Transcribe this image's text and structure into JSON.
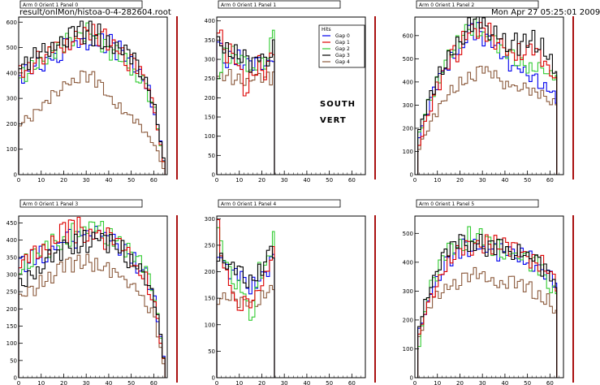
{
  "header": {
    "file_path": "result/onlMon/histoa-0-4-282604.root",
    "timestamp": "Mon Apr 27 05:25:01 2009"
  },
  "overlay_text": {
    "line1": "SOUTH",
    "line2": "VERT"
  },
  "legend": {
    "title": "Hits",
    "entries": [
      "Gap 0",
      "Gap 1",
      "Gap 2",
      "Gap 3",
      "Gap 4"
    ]
  },
  "colors": {
    "Gap 0": "#0000ee",
    "Gap 1": "#dd0000",
    "Gap 2": "#33cc33",
    "Gap 3": "#000000",
    "Gap 4": "#8b5a3c",
    "frame_right": "#aa1111"
  },
  "chart_data": [
    {
      "type": "line",
      "title": "Arm 0 Orient 1 Panel 0",
      "xlim": [
        0,
        66
      ],
      "ylim": [
        0,
        620
      ],
      "xticks": [
        0,
        10,
        20,
        30,
        40,
        50,
        60
      ],
      "yticks": [
        0,
        100,
        200,
        300,
        400,
        500,
        600
      ],
      "series": [
        {
          "name": "Gap 0",
          "x": [
            0,
            5,
            10,
            15,
            20,
            25,
            30,
            35,
            40,
            45,
            50,
            55,
            60,
            63,
            65
          ],
          "y": [
            390,
            410,
            440,
            470,
            500,
            520,
            540,
            530,
            510,
            480,
            440,
            380,
            250,
            90,
            0
          ]
        },
        {
          "name": "Gap 1",
          "x": [
            0,
            5,
            10,
            15,
            20,
            25,
            30,
            35,
            40,
            45,
            50,
            55,
            60,
            63,
            65
          ],
          "y": [
            400,
            430,
            460,
            490,
            520,
            540,
            560,
            540,
            520,
            480,
            430,
            370,
            240,
            80,
            0
          ]
        },
        {
          "name": "Gap 2",
          "x": [
            0,
            5,
            10,
            15,
            20,
            25,
            30,
            35,
            40,
            45,
            50,
            55,
            60,
            63,
            65
          ],
          "y": [
            380,
            420,
            450,
            480,
            510,
            540,
            580,
            520,
            490,
            460,
            420,
            360,
            240,
            80,
            0
          ]
        },
        {
          "name": "Gap 3",
          "x": [
            0,
            5,
            10,
            15,
            20,
            25,
            30,
            35,
            40,
            45,
            50,
            55,
            60,
            63,
            65
          ],
          "y": [
            420,
            450,
            490,
            520,
            540,
            550,
            560,
            550,
            530,
            490,
            450,
            390,
            260,
            100,
            0
          ]
        },
        {
          "name": "Gap 4",
          "x": [
            0,
            5,
            10,
            15,
            20,
            25,
            30,
            35,
            40,
            45,
            50,
            55,
            60,
            63,
            65
          ],
          "y": [
            210,
            230,
            270,
            310,
            360,
            380,
            400,
            350,
            300,
            260,
            220,
            170,
            120,
            40,
            0
          ]
        }
      ]
    },
    {
      "type": "line",
      "title": "Arm 0 Orient 1 Panel 1",
      "xlim": [
        0,
        66
      ],
      "ylim": [
        0,
        410
      ],
      "xticks": [
        0,
        10,
        20,
        30,
        40,
        50,
        60
      ],
      "yticks": [
        0,
        50,
        100,
        150,
        200,
        250,
        300,
        350,
        400
      ],
      "series": [
        {
          "name": "Gap 0",
          "x": [
            0,
            3,
            6,
            9,
            12,
            15,
            18,
            21,
            24,
            25.5,
            25.6
          ],
          "y": [
            330,
            300,
            310,
            300,
            290,
            270,
            290,
            280,
            300,
            310,
            0
          ]
        },
        {
          "name": "Gap 1",
          "x": [
            0,
            3,
            6,
            9,
            12,
            15,
            18,
            21,
            24,
            25.5,
            25.6
          ],
          "y": [
            380,
            300,
            320,
            290,
            210,
            260,
            290,
            250,
            330,
            350,
            0
          ]
        },
        {
          "name": "Gap 2",
          "x": [
            0,
            3,
            6,
            9,
            12,
            15,
            18,
            21,
            24,
            25.5,
            25.6
          ],
          "y": [
            260,
            320,
            310,
            300,
            280,
            270,
            300,
            290,
            340,
            380,
            0
          ]
        },
        {
          "name": "Gap 3",
          "x": [
            0,
            3,
            6,
            9,
            12,
            15,
            18,
            21,
            24,
            25.5,
            25.6
          ],
          "y": [
            350,
            320,
            320,
            310,
            300,
            290,
            300,
            290,
            320,
            330,
            0
          ]
        },
        {
          "name": "Gap 4",
          "x": [
            0,
            3,
            6,
            9,
            12,
            15,
            18,
            21,
            24,
            25.5,
            25.6
          ],
          "y": [
            250,
            260,
            250,
            260,
            240,
            250,
            260,
            250,
            250,
            240,
            0
          ]
        }
      ]
    },
    {
      "type": "line",
      "title": "Arm 0 Orient 1 Panel 2",
      "xlim": [
        0,
        66
      ],
      "ylim": [
        0,
        680
      ],
      "xticks": [
        0,
        10,
        20,
        30,
        40,
        50,
        60
      ],
      "yticks": [
        0,
        100,
        200,
        300,
        400,
        500,
        600
      ],
      "series": [
        {
          "name": "Gap 0",
          "x": [
            0,
            1,
            5,
            10,
            15,
            20,
            25,
            30,
            35,
            40,
            45,
            50,
            55,
            60,
            63
          ],
          "y": [
            0,
            150,
            280,
            400,
            500,
            570,
            620,
            600,
            560,
            500,
            460,
            420,
            400,
            360,
            330
          ]
        },
        {
          "name": "Gap 1",
          "x": [
            0,
            1,
            5,
            10,
            15,
            20,
            25,
            30,
            35,
            40,
            45,
            50,
            55,
            60,
            63
          ],
          "y": [
            0,
            120,
            260,
            390,
            490,
            560,
            640,
            620,
            580,
            540,
            520,
            540,
            520,
            450,
            400
          ]
        },
        {
          "name": "Gap 2",
          "x": [
            0,
            1,
            5,
            10,
            15,
            20,
            25,
            30,
            35,
            40,
            45,
            50,
            55,
            60,
            63
          ],
          "y": [
            0,
            160,
            300,
            420,
            510,
            580,
            650,
            610,
            570,
            520,
            490,
            470,
            460,
            420,
            390
          ]
        },
        {
          "name": "Gap 3",
          "x": [
            0,
            1,
            5,
            10,
            15,
            20,
            25,
            30,
            35,
            40,
            45,
            50,
            55,
            60,
            63
          ],
          "y": [
            0,
            170,
            310,
            420,
            520,
            590,
            640,
            640,
            600,
            580,
            560,
            580,
            560,
            500,
            440
          ]
        },
        {
          "name": "Gap 4",
          "x": [
            0,
            1,
            5,
            10,
            15,
            20,
            25,
            30,
            35,
            40,
            45,
            50,
            55,
            60,
            63
          ],
          "y": [
            0,
            110,
            200,
            280,
            350,
            400,
            440,
            460,
            420,
            400,
            380,
            360,
            340,
            320,
            300
          ]
        }
      ]
    },
    {
      "type": "line",
      "title": "Arm 0 Orient 1 Panel 3",
      "xlim": [
        0,
        66
      ],
      "ylim": [
        0,
        470
      ],
      "xticks": [
        0,
        10,
        20,
        30,
        40,
        50,
        60
      ],
      "yticks": [
        0,
        50,
        100,
        150,
        200,
        250,
        300,
        350,
        400,
        450
      ],
      "series": [
        {
          "name": "Gap 0",
          "x": [
            0,
            5,
            10,
            15,
            20,
            25,
            30,
            35,
            40,
            45,
            50,
            55,
            60,
            63,
            65
          ],
          "y": [
            320,
            340,
            360,
            380,
            400,
            410,
            420,
            420,
            400,
            380,
            350,
            310,
            230,
            90,
            0
          ]
        },
        {
          "name": "Gap 1",
          "x": [
            0,
            5,
            10,
            15,
            20,
            25,
            30,
            35,
            40,
            45,
            50,
            55,
            60,
            63,
            65
          ],
          "y": [
            330,
            360,
            380,
            400,
            420,
            430,
            430,
            420,
            400,
            380,
            340,
            300,
            210,
            80,
            0
          ]
        },
        {
          "name": "Gap 2",
          "x": [
            0,
            5,
            10,
            15,
            20,
            25,
            30,
            35,
            40,
            45,
            50,
            55,
            60,
            63,
            65
          ],
          "y": [
            320,
            340,
            370,
            390,
            410,
            430,
            440,
            430,
            410,
            390,
            360,
            320,
            240,
            90,
            0
          ]
        },
        {
          "name": "Gap 3",
          "x": [
            0,
            5,
            10,
            15,
            20,
            25,
            30,
            35,
            40,
            45,
            50,
            55,
            60,
            63,
            65
          ],
          "y": [
            280,
            300,
            330,
            350,
            370,
            390,
            400,
            400,
            390,
            370,
            340,
            300,
            220,
            90,
            0
          ]
        },
        {
          "name": "Gap 4",
          "x": [
            0,
            5,
            10,
            15,
            20,
            25,
            30,
            35,
            40,
            45,
            50,
            55,
            60,
            63,
            65
          ],
          "y": [
            230,
            250,
            280,
            300,
            320,
            330,
            340,
            330,
            310,
            290,
            270,
            230,
            170,
            60,
            0
          ]
        }
      ]
    },
    {
      "type": "line",
      "title": "Arm 0 Orient 1 Panel 4",
      "xlim": [
        0,
        66
      ],
      "ylim": [
        0,
        305
      ],
      "xticks": [
        0,
        10,
        20,
        30,
        40,
        50,
        60
      ],
      "yticks": [
        0,
        50,
        100,
        150,
        200,
        250,
        300
      ],
      "series": [
        {
          "name": "Gap 0",
          "x": [
            0,
            3,
            6,
            9,
            12,
            15,
            18,
            21,
            24,
            25.5,
            25.6
          ],
          "y": [
            240,
            210,
            200,
            190,
            180,
            170,
            190,
            200,
            220,
            240,
            0
          ]
        },
        {
          "name": "Gap 1",
          "x": [
            0,
            3,
            6,
            9,
            12,
            15,
            18,
            21,
            24,
            25.5,
            25.6
          ],
          "y": [
            290,
            200,
            180,
            120,
            150,
            130,
            180,
            190,
            230,
            240,
            0
          ]
        },
        {
          "name": "Gap 2",
          "x": [
            0,
            3,
            6,
            9,
            12,
            15,
            18,
            21,
            24,
            25.5,
            25.6
          ],
          "y": [
            270,
            220,
            190,
            180,
            160,
            95,
            200,
            210,
            250,
            260,
            0
          ]
        },
        {
          "name": "Gap 3",
          "x": [
            0,
            3,
            6,
            9,
            12,
            15,
            18,
            21,
            24,
            25.5,
            25.6
          ],
          "y": [
            230,
            210,
            210,
            200,
            190,
            180,
            200,
            220,
            240,
            250,
            0
          ]
        },
        {
          "name": "Gap 4",
          "x": [
            0,
            3,
            6,
            9,
            12,
            15,
            18,
            21,
            24,
            25.5,
            25.6
          ],
          "y": [
            150,
            160,
            150,
            145,
            140,
            140,
            150,
            160,
            170,
            170,
            0
          ]
        }
      ]
    },
    {
      "type": "line",
      "title": "Arm 0 Orient 1 Panel 5",
      "xlim": [
        0,
        66
      ],
      "ylim": [
        0,
        560
      ],
      "xticks": [
        0,
        10,
        20,
        30,
        40,
        50,
        60
      ],
      "yticks": [
        0,
        100,
        200,
        300,
        400,
        500
      ],
      "series": [
        {
          "name": "Gap 0",
          "x": [
            0,
            1,
            5,
            10,
            15,
            20,
            25,
            30,
            35,
            40,
            45,
            50,
            55,
            60,
            63
          ],
          "y": [
            0,
            150,
            260,
            360,
            420,
            450,
            460,
            450,
            440,
            430,
            420,
            410,
            380,
            340,
            300
          ]
        },
        {
          "name": "Gap 1",
          "x": [
            0,
            1,
            5,
            10,
            15,
            20,
            25,
            30,
            35,
            40,
            45,
            50,
            55,
            60,
            63
          ],
          "y": [
            0,
            140,
            250,
            350,
            410,
            440,
            460,
            470,
            460,
            450,
            440,
            420,
            400,
            360,
            320
          ]
        },
        {
          "name": "Gap 2",
          "x": [
            0,
            1,
            5,
            10,
            15,
            20,
            25,
            30,
            35,
            40,
            45,
            50,
            55,
            60,
            63
          ],
          "y": [
            0,
            100,
            280,
            380,
            440,
            470,
            500,
            480,
            460,
            440,
            430,
            410,
            380,
            320,
            290
          ]
        },
        {
          "name": "Gap 3",
          "x": [
            0,
            1,
            5,
            10,
            15,
            20,
            25,
            30,
            35,
            40,
            45,
            50,
            55,
            60,
            63
          ],
          "y": [
            0,
            170,
            300,
            390,
            440,
            460,
            470,
            460,
            450,
            440,
            430,
            420,
            390,
            340,
            300
          ]
        },
        {
          "name": "Gap 4",
          "x": [
            0,
            1,
            5,
            10,
            15,
            20,
            25,
            30,
            35,
            40,
            45,
            50,
            55,
            60,
            63
          ],
          "y": [
            0,
            130,
            230,
            290,
            320,
            340,
            350,
            360,
            340,
            330,
            320,
            310,
            290,
            260,
            220
          ]
        }
      ]
    }
  ]
}
